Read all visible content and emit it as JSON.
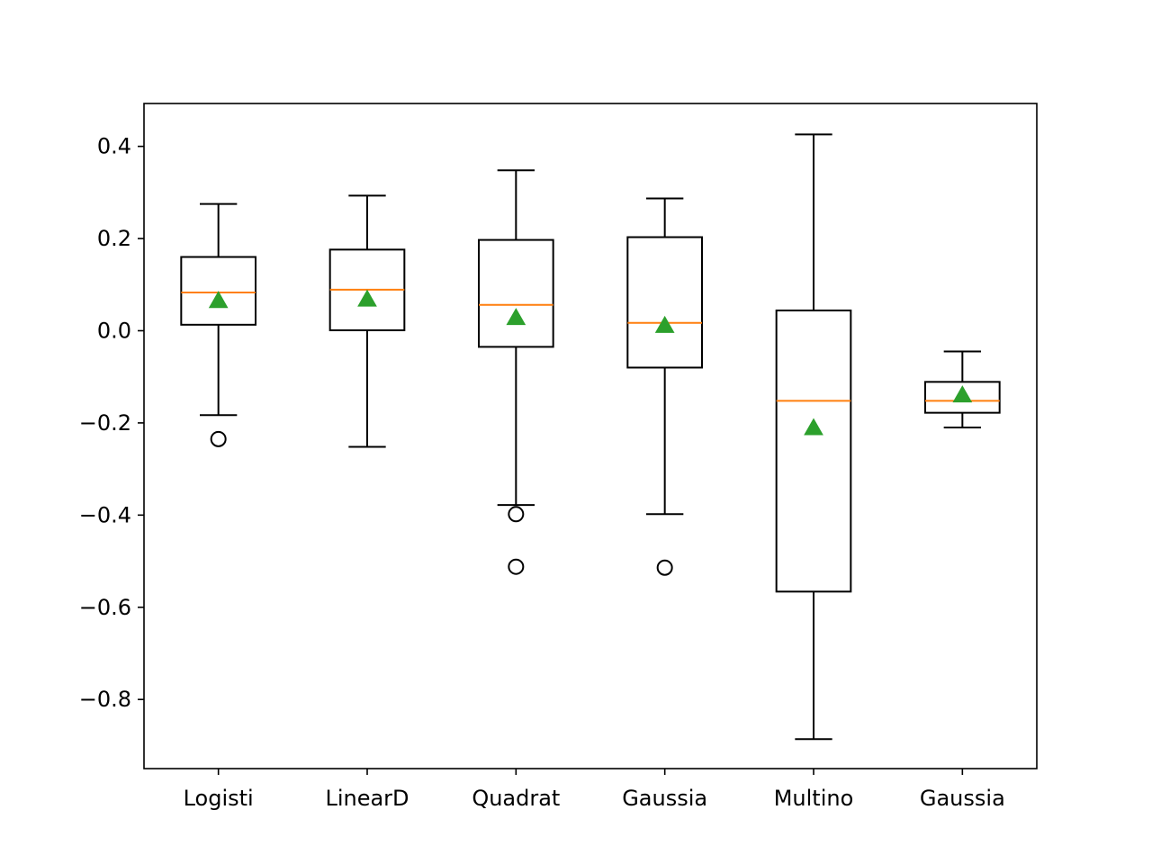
{
  "chart_data": {
    "type": "box",
    "categories": [
      "Logisti",
      "LinearD",
      "Quadrat",
      "Gaussia",
      "Multino",
      "Gaussia"
    ],
    "boxes": [
      {
        "label": "Logisti",
        "whisker_low": -0.183,
        "q1": 0.013,
        "median": 0.083,
        "q3": 0.16,
        "whisker_high": 0.275,
        "mean": 0.065,
        "outliers": [
          -0.235
        ]
      },
      {
        "label": "LinearD",
        "whisker_low": -0.252,
        "q1": 0.001,
        "median": 0.089,
        "q3": 0.176,
        "whisker_high": 0.293,
        "mean": 0.068,
        "outliers": []
      },
      {
        "label": "Quadrat",
        "whisker_low": -0.378,
        "q1": -0.035,
        "median": 0.056,
        "q3": 0.197,
        "whisker_high": 0.348,
        "mean": 0.028,
        "outliers": [
          -0.398,
          -0.512
        ]
      },
      {
        "label": "Gaussia",
        "whisker_low": -0.398,
        "q1": -0.08,
        "median": 0.017,
        "q3": 0.203,
        "whisker_high": 0.287,
        "mean": 0.011,
        "outliers": [
          -0.514
        ]
      },
      {
        "label": "Multino",
        "whisker_low": -0.886,
        "q1": -0.566,
        "median": -0.152,
        "q3": 0.044,
        "whisker_high": 0.426,
        "mean": -0.211,
        "outliers": []
      },
      {
        "label": "Gaussia",
        "whisker_low": -0.21,
        "q1": -0.178,
        "median": -0.152,
        "q3": -0.111,
        "whisker_high": -0.045,
        "mean": -0.14,
        "outliers": []
      }
    ],
    "yticks": [
      0.4,
      0.2,
      0.0,
      -0.2,
      -0.4,
      -0.6,
      -0.8
    ],
    "ytick_labels": [
      "0.4",
      "0.2",
      "0.0",
      "−0.2",
      "−0.4",
      "−0.6",
      "−0.8"
    ],
    "ylim": [
      -0.95,
      0.493
    ],
    "title": "",
    "xlabel": "",
    "ylabel": "",
    "grid": false,
    "colors": {
      "box": "#000000",
      "median": "#ff7f0e",
      "mean_marker": "#2ca02c",
      "outlier": "#000000"
    }
  }
}
